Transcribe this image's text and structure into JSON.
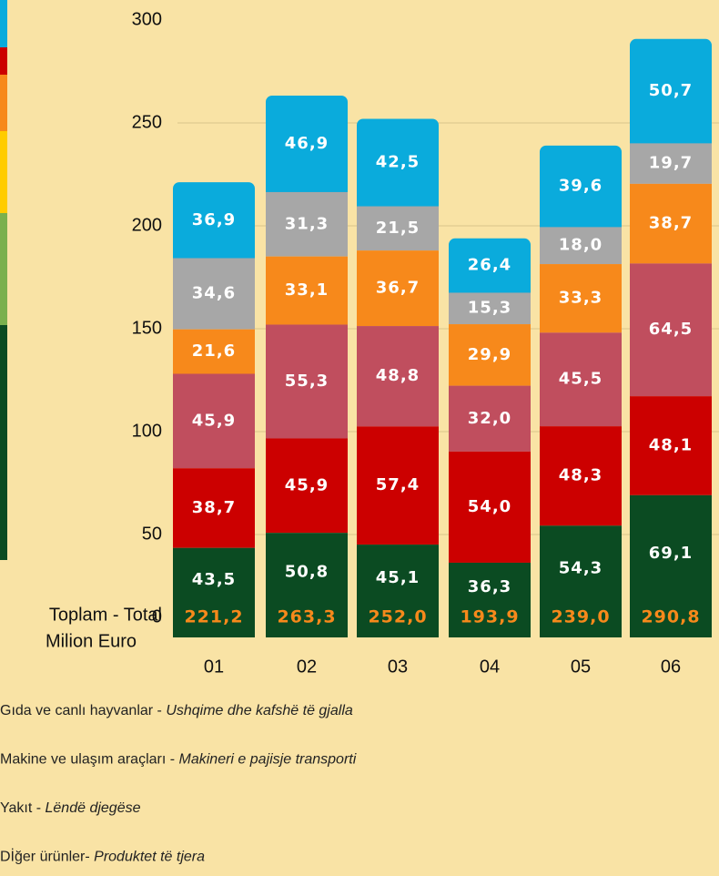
{
  "chart_data": {
    "type": "stacked_bar",
    "axis_label": [
      "Toplam - Total",
      "Milion Euro"
    ],
    "categories": [
      "01",
      "02",
      "03",
      "04",
      "05",
      "06"
    ],
    "ylim": [
      0,
      300
    ],
    "yticks": [
      0,
      50,
      100,
      150,
      200,
      250,
      300
    ],
    "grid": true,
    "series": [
      {
        "color": "#0b4b22",
        "values": [
          43.5,
          50.8,
          45.1,
          36.3,
          54.3,
          69.1
        ],
        "value_labels": [
          "43,5",
          "50,8",
          "45,1",
          "36,3",
          "54,3",
          "69,1"
        ]
      },
      {
        "color": "#cc0000",
        "values": [
          38.7,
          45.9,
          57.4,
          54.0,
          48.3,
          48.1
        ],
        "value_labels": [
          "38,7",
          "45,9",
          "57,4",
          "54,0",
          "48,3",
          "48,1"
        ]
      },
      {
        "color": "#c04e5e",
        "values": [
          45.9,
          55.3,
          48.8,
          32.0,
          45.5,
          64.5
        ],
        "value_labels": [
          "45,9",
          "55,3",
          "48,8",
          "32,0",
          "45,5",
          "64,5"
        ]
      },
      {
        "color": "#f7891b",
        "values": [
          21.6,
          33.1,
          36.7,
          29.9,
          33.3,
          38.7
        ],
        "value_labels": [
          "21,6",
          "33,1",
          "36,7",
          "29,9",
          "33,3",
          "38,7"
        ]
      },
      {
        "color": "#a7a7a7",
        "values": [
          34.6,
          31.3,
          21.5,
          15.3,
          18.0,
          19.7
        ],
        "value_labels": [
          "34,6",
          "31,3",
          "21,5",
          "15,3",
          "18,0",
          "19,7"
        ]
      },
      {
        "color": "#0aabdc",
        "values": [
          36.9,
          46.9,
          42.5,
          26.4,
          39.6,
          50.7
        ],
        "value_labels": [
          "36,9",
          "46,9",
          "42,5",
          "26,4",
          "39,6",
          "50,7"
        ]
      }
    ],
    "totals": {
      "color": "#f7891b",
      "values": [
        221.2,
        263.3,
        252.0,
        193.9,
        239.0,
        290.8
      ],
      "value_labels": [
        "221,2",
        "263,3",
        "252,0",
        "193,9",
        "239,0",
        "290,8"
      ]
    },
    "legend": [
      {
        "text": "Gıda ve canlı hayvanlar - ",
        "italic": "Ushqime dhe kafshë të gjalla"
      },
      {
        "text": "Makine ve ulaşım araçları - ",
        "italic": "Makineri e pajisje transporti"
      },
      {
        "text": "Yakıt - ",
        "italic": "Lëndë djegëse"
      },
      {
        "text": "Dİğer ürünler- ",
        "italic": "Produktet të tjera"
      }
    ]
  }
}
